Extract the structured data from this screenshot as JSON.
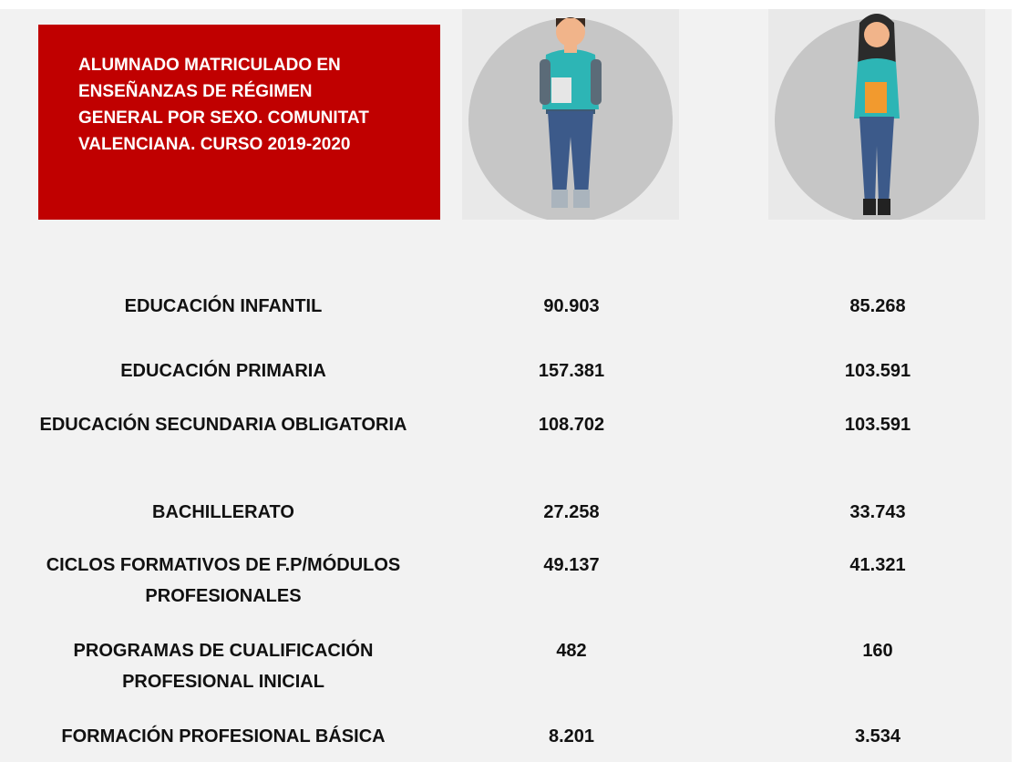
{
  "header": {
    "title": "ALUMNADO MATRICULADO EN ENSEÑANZAS DE RÉGIMEN GENERAL POR SEXO. COMUNITAT VALENCIANA.  CURSO 2019-2020"
  },
  "table": {
    "rows": [
      [
        "EDUCACIÓN INFANTIL",
        "90.903",
        "85.268"
      ],
      [
        "EDUCACIÓN PRIMARIA",
        "157.381",
        "103.591"
      ],
      [
        "EDUCACIÓN SECUNDARIA OBLIGATORIA",
        "108.702",
        "103.591"
      ],
      [
        "BACHILLERATO",
        "27.258",
        "33.743"
      ],
      [
        "CICLOS FORMATIVOS DE F.P/MÓDULOS PROFESIONALES",
        "49.137",
        "41.321"
      ],
      [
        "PROGRAMAS DE CUALIFICACIÓN PROFESIONAL INICIAL",
        "482",
        "160"
      ],
      [
        "FORMACIÓN PROFESIONAL BÁSICA",
        "8.201",
        "3.534"
      ]
    ]
  }
}
